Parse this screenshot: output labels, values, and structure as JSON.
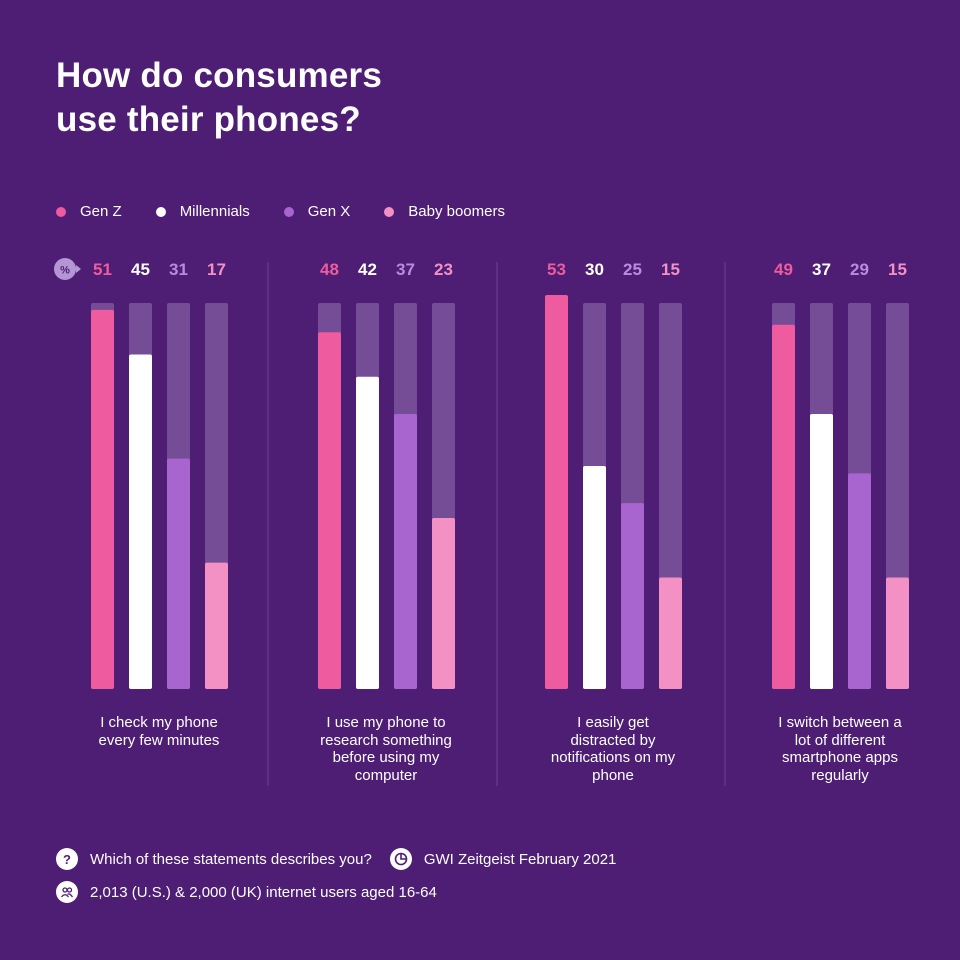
{
  "header": {
    "title_line1": "How do consumers",
    "title_line2": "use their phones?"
  },
  "legend": [
    {
      "label": "Gen Z",
      "color": "#ee5b9e"
    },
    {
      "label": "Millennials",
      "color": "#ffffff"
    },
    {
      "label": "Gen X",
      "color": "#a865d0"
    },
    {
      "label": "Baby boomers",
      "color": "#f491c4"
    }
  ],
  "unit_badge": "%",
  "chart_data": {
    "type": "bar",
    "ylim": [
      0,
      60
    ],
    "series": [
      {
        "name": "Gen Z",
        "color": "#ee5b9e",
        "label_color": "#ee5b9e",
        "values": [
          51,
          48,
          53,
          49
        ]
      },
      {
        "name": "Millennials",
        "color": "#ffffff",
        "label_color": "#ffffff",
        "values": [
          45,
          42,
          30,
          37
        ]
      },
      {
        "name": "Gen X",
        "color": "#a865d0",
        "label_color": "#b98be0",
        "values": [
          31,
          37,
          25,
          29
        ]
      },
      {
        "name": "Baby boomers",
        "color": "#f491c4",
        "label_color": "#f491c4",
        "values": [
          17,
          23,
          15,
          15
        ]
      }
    ],
    "categories": [
      [
        "I check my phone",
        "every few minutes"
      ],
      [
        "I use my phone to",
        "research something",
        "before using my",
        "computer"
      ],
      [
        "I easily get",
        "distracted by",
        "notifications on my",
        "phone"
      ],
      [
        "I switch between a",
        "lot of different",
        "smartphone apps",
        "regularly"
      ]
    ]
  },
  "footer": {
    "question_icon": "?",
    "question": "Which of these statements describes you?",
    "source": "GWI Zeitgeist February 2021",
    "sample": "2,013 (U.S.) & 2,000 (UK) internet users aged 16-64"
  },
  "colors": {
    "background": "#4e1e74",
    "track": "#744d96",
    "divider": "#6b4290"
  }
}
